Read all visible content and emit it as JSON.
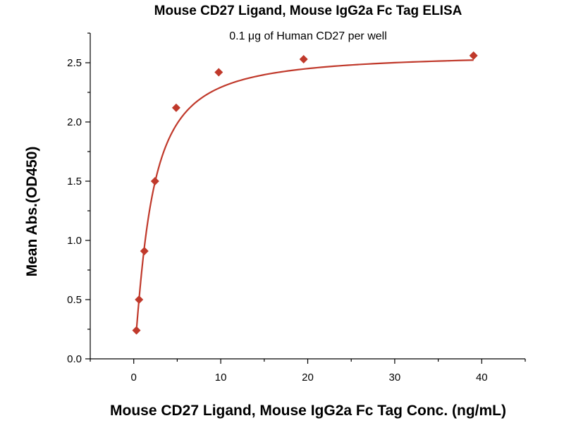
{
  "chart_data": {
    "type": "scatter",
    "title": "Mouse CD27 Ligand, Mouse IgG2a Fc Tag ELISA",
    "subtitle": "0.1 μg of Human CD27 per well",
    "xlabel": "Mouse CD27 Ligand, Mouse IgG2a Fc Tag Conc. (ng/mL)",
    "ylabel": "Mean Abs.(OD450)",
    "xlim": [
      -5,
      45
    ],
    "ylim": [
      0,
      2.75
    ],
    "x_ticks": [
      0,
      10,
      20,
      30,
      40
    ],
    "x_minor_ticks": [
      -5,
      5,
      15,
      25,
      35,
      45
    ],
    "y_ticks": [
      0.0,
      0.5,
      1.0,
      1.5,
      2.0,
      2.5
    ],
    "y_tick_labels": [
      "0.0",
      "0.5",
      "1.0",
      "1.5",
      "2.0",
      "2.5"
    ],
    "y_minor_ticks": [
      0.25,
      0.75,
      1.25,
      1.75,
      2.25,
      2.75
    ],
    "series": [
      {
        "name": "ELISA",
        "color": "#c0392b",
        "marker": "diamond",
        "x": [
          0.31,
          0.61,
          1.22,
          2.44,
          4.88,
          9.77,
          19.53,
          39.06
        ],
        "y": [
          0.24,
          0.5,
          0.91,
          1.5,
          2.12,
          2.42,
          2.53,
          2.56
        ]
      }
    ],
    "fit_curve": {
      "type": "4PL",
      "bottom": 0.0,
      "top": 2.58,
      "ec50": 1.9,
      "hill": 1.25,
      "range": [
        0.31,
        39.06
      ]
    }
  }
}
